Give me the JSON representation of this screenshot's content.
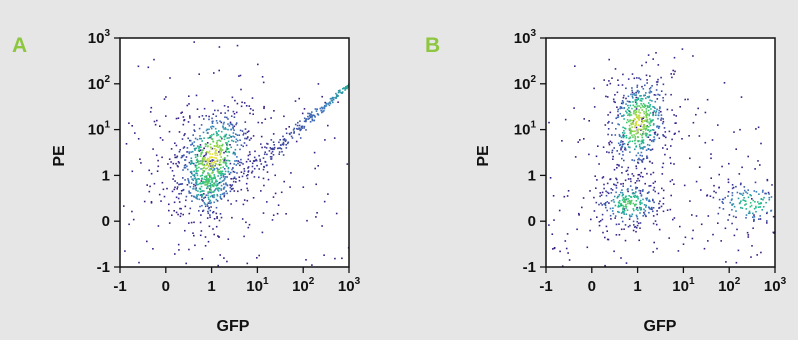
{
  "colors": {
    "background": "#e6e6e6",
    "plot_area": "#ffffff",
    "panel_letter": "#8dc63f",
    "axis": "#111111",
    "density_low": "#3b1d84",
    "density_high": "#f4e23a"
  },
  "chart_data": [
    {
      "type": "scatter",
      "panel": "A",
      "xlabel": "GFP",
      "ylabel": "PE",
      "x_scale": "biexponential",
      "y_scale": "biexponential",
      "xlim": [
        -1,
        1000
      ],
      "ylim": [
        -1,
        1000
      ],
      "x_ticks": [
        {
          "value": -1,
          "base": "-1",
          "sup": ""
        },
        {
          "value": 0,
          "base": "0",
          "sup": ""
        },
        {
          "value": 1,
          "base": "1",
          "sup": ""
        },
        {
          "value": 10,
          "base": "10",
          "sup": "1"
        },
        {
          "value": 100,
          "base": "10",
          "sup": "2"
        },
        {
          "value": 1000,
          "base": "10",
          "sup": "3"
        }
      ],
      "y_ticks": [
        {
          "value": -1,
          "base": "-1",
          "sup": ""
        },
        {
          "value": 0,
          "base": "0",
          "sup": ""
        },
        {
          "value": 1,
          "base": "1",
          "sup": ""
        },
        {
          "value": 10,
          "base": "10",
          "sup": "1"
        },
        {
          "value": 100,
          "base": "10",
          "sup": "2"
        },
        {
          "value": 1000,
          "base": "10",
          "sup": "3"
        }
      ],
      "populations": [
        {
          "center_gfp": 1.0,
          "center_pe": 2.5,
          "spread_gfp": 0.35,
          "spread_pe": 0.55,
          "rotation_deg": 20,
          "weight": 0.8
        },
        {
          "center_gfp": 0.9,
          "center_pe": 0.8,
          "spread_gfp": 0.3,
          "spread_pe": 0.35,
          "rotation_deg": 10,
          "weight": 0.35
        }
      ],
      "diagonal": {
        "from": [
          5,
          1
        ],
        "to": [
          1000,
          100
        ],
        "weight": 0.25
      }
    },
    {
      "type": "scatter",
      "panel": "B",
      "xlabel": "GFP",
      "ylabel": "PE",
      "x_scale": "biexponential",
      "y_scale": "biexponential",
      "xlim": [
        -1,
        1000
      ],
      "ylim": [
        -1,
        1000
      ],
      "x_ticks": [
        {
          "value": -1,
          "base": "-1",
          "sup": ""
        },
        {
          "value": 0,
          "base": "0",
          "sup": ""
        },
        {
          "value": 1,
          "base": "1",
          "sup": ""
        },
        {
          "value": 10,
          "base": "10",
          "sup": "1"
        },
        {
          "value": 100,
          "base": "10",
          "sup": "2"
        },
        {
          "value": 1000,
          "base": "10",
          "sup": "3"
        }
      ],
      "y_ticks": [
        {
          "value": -1,
          "base": "-1",
          "sup": ""
        },
        {
          "value": 0,
          "base": "0",
          "sup": ""
        },
        {
          "value": 1,
          "base": "1",
          "sup": ""
        },
        {
          "value": 10,
          "base": "10",
          "sup": "1"
        },
        {
          "value": 100,
          "base": "10",
          "sup": "2"
        },
        {
          "value": 1000,
          "base": "10",
          "sup": "3"
        }
      ],
      "populations": [
        {
          "center_gfp": 1.0,
          "center_pe": 15,
          "spread_gfp": 0.3,
          "spread_pe": 0.5,
          "rotation_deg": 12,
          "weight": 0.75
        },
        {
          "center_gfp": 0.8,
          "center_pe": 0.4,
          "spread_gfp": 0.35,
          "spread_pe": 0.25,
          "rotation_deg": 0,
          "weight": 0.35
        },
        {
          "center_gfp": 300,
          "center_pe": 0.4,
          "spread_gfp": 0.45,
          "spread_pe": 0.25,
          "rotation_deg": 0,
          "weight": 0.2
        }
      ],
      "diagonal": null
    }
  ]
}
